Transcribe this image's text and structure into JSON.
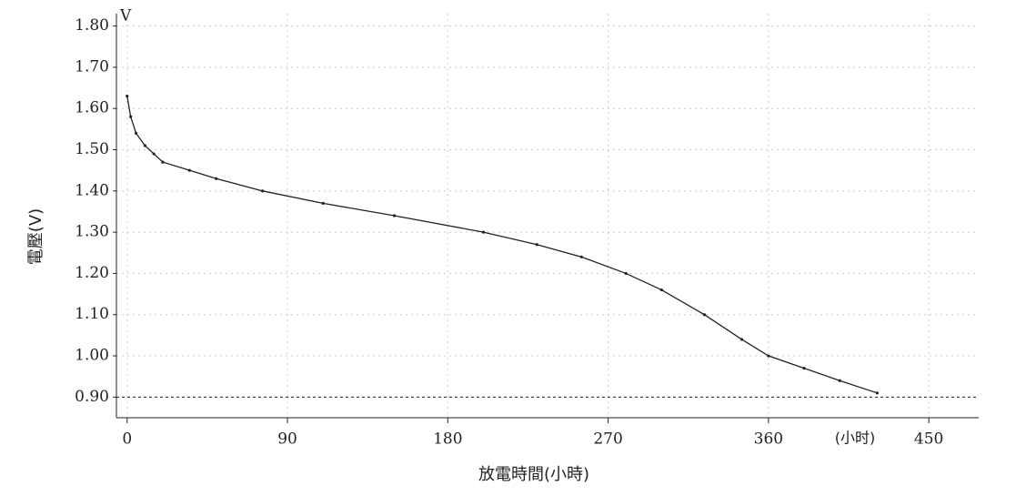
{
  "chart_data": {
    "type": "line",
    "xlabel": "放電時間(小時)",
    "ylabel": "電壓(V)",
    "y_unit": "V",
    "x_unit": "(小时)",
    "x": [
      0,
      2,
      5,
      10,
      15,
      20,
      35,
      50,
      76,
      110,
      150,
      200,
      230,
      255,
      280,
      300,
      324,
      345,
      360,
      380,
      400,
      421
    ],
    "series": [
      {
        "name": "電壓",
        "color": "#222222",
        "values": [
          1.63,
          1.58,
          1.54,
          1.51,
          1.49,
          1.47,
          1.45,
          1.43,
          1.4,
          1.37,
          1.34,
          1.3,
          1.27,
          1.24,
          1.2,
          1.16,
          1.1,
          1.04,
          1.0,
          0.97,
          0.94,
          0.91
        ]
      }
    ],
    "hline": 0.9,
    "xlim": [
      -6,
      478
    ],
    "ylim": [
      0.85,
      1.83
    ],
    "xticks": [
      0,
      90,
      180,
      270,
      360,
      450
    ],
    "yticks": [
      {
        "value": 0.9,
        "label": "0.90"
      },
      {
        "value": 1.0,
        "label": "1.00"
      },
      {
        "value": 1.1,
        "label": "1.10"
      },
      {
        "value": 1.2,
        "label": "1.20"
      },
      {
        "value": 1.3,
        "label": "1.30"
      },
      {
        "value": 1.4,
        "label": "1.40"
      },
      {
        "value": 1.5,
        "label": "1.50"
      },
      {
        "value": 1.6,
        "label": "1.60"
      },
      {
        "value": 1.7,
        "label": "1.70"
      },
      {
        "value": 1.8,
        "label": "1.80"
      }
    ],
    "grid": true
  }
}
